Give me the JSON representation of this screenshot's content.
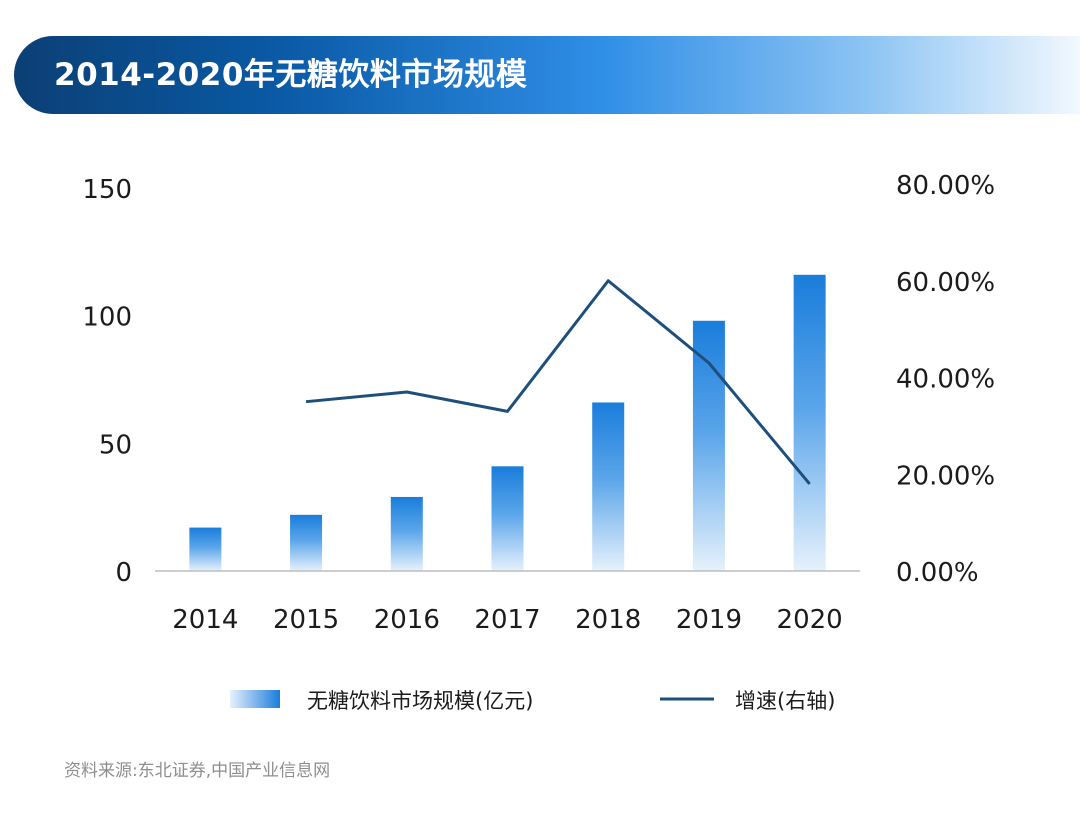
{
  "banner": {
    "title": "2014-2020年无糖饮料市场规模"
  },
  "source": "资料来源:东北证券,中国产业信息网",
  "colors": {
    "bar_top": "#1a7ddb",
    "bar_bottom": "#e6f1fc",
    "line": "#1d4f7c",
    "baseline": "#bdbdbd"
  },
  "chart_data": {
    "type": "bar",
    "categories": [
      "2014",
      "2015",
      "2016",
      "2017",
      "2018",
      "2019",
      "2020"
    ],
    "series": [
      {
        "name": "无糖饮料市场规模(亿元)",
        "type": "bar",
        "axis": "left",
        "values": [
          17,
          22,
          29,
          41,
          66,
          98,
          116
        ]
      },
      {
        "name": "增速(右轴)",
        "type": "line",
        "axis": "right",
        "values": [
          null,
          35,
          37,
          33,
          60,
          43,
          18
        ]
      }
    ],
    "y_left": {
      "range": [
        0,
        150
      ],
      "ticks": [
        "0",
        "50",
        "100",
        "150"
      ]
    },
    "y_right": {
      "range": [
        0,
        80
      ],
      "ticks": [
        "0.00%",
        "20.00%",
        "40.00%",
        "60.00%",
        "80.00%"
      ]
    },
    "legend": {
      "position": "bottom",
      "items": [
        "无糖饮料市场规模(亿元)",
        "增速(右轴)"
      ]
    },
    "grid": false
  }
}
